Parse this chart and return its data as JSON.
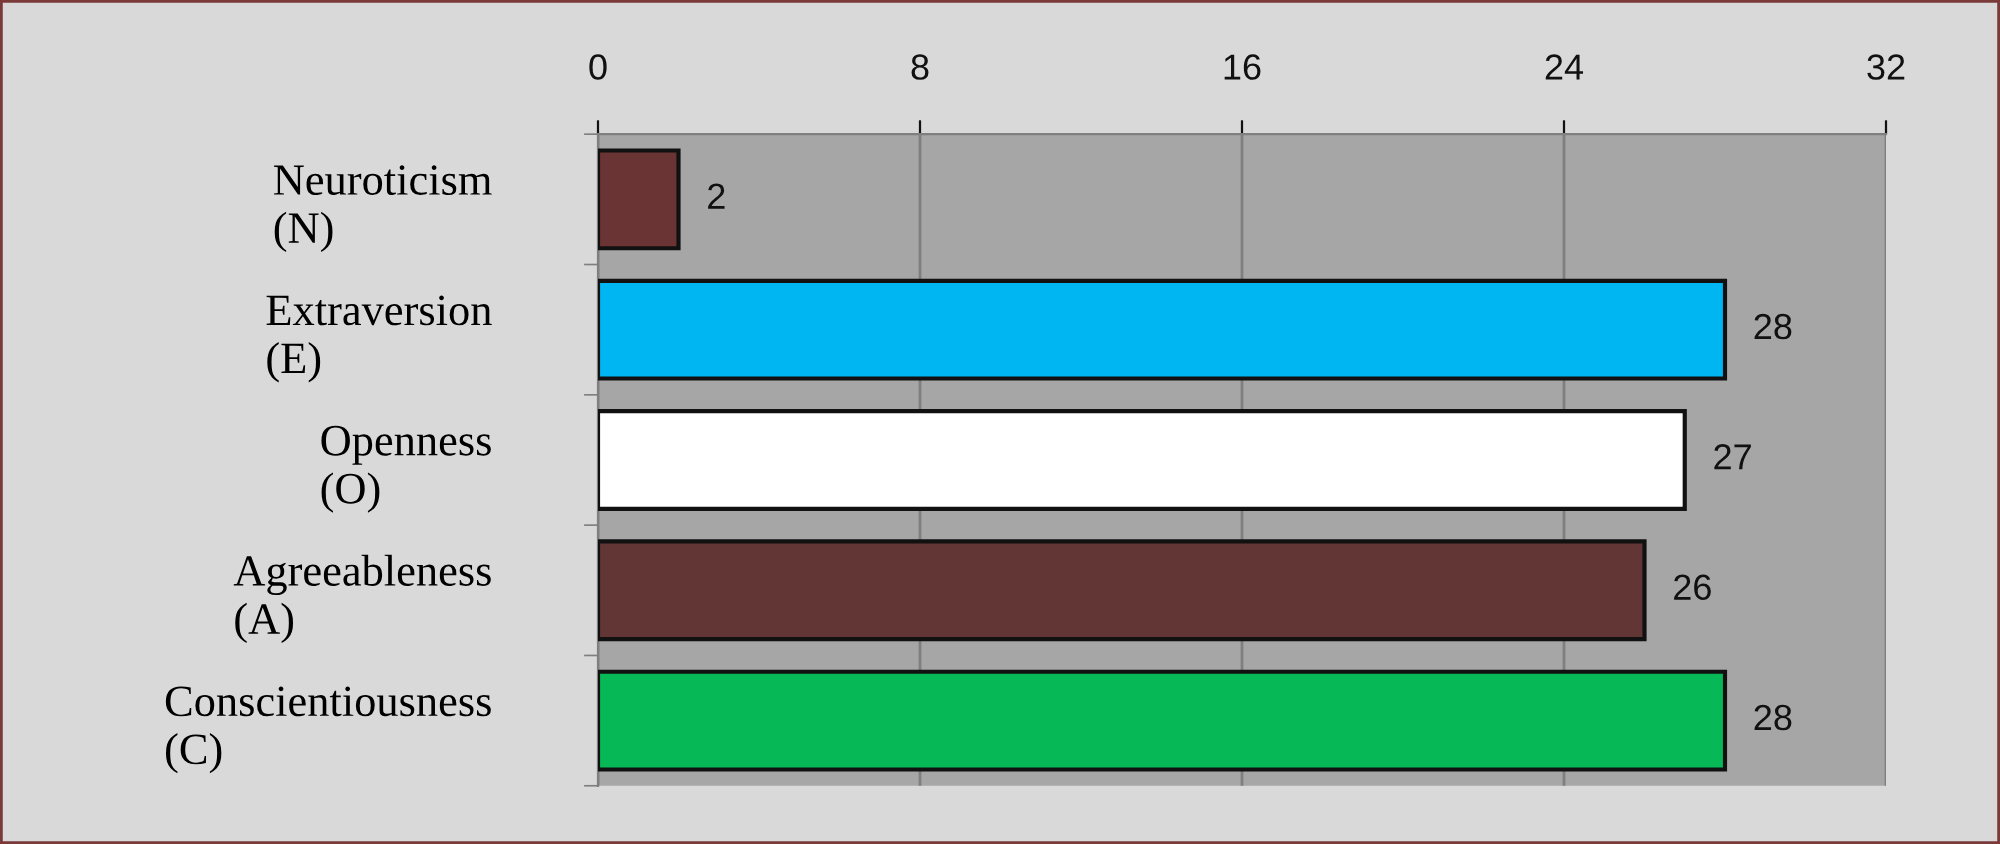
{
  "chart_data": {
    "type": "bar",
    "orientation": "horizontal",
    "categories": [
      "Neuroticism (N)",
      "Extraversion (E)",
      "Openness (O)",
      "Agreeableness (A)",
      "Conscientiousness (C)"
    ],
    "values": [
      2,
      28,
      27,
      26,
      28
    ],
    "colors": [
      "#6b3434",
      "#00b6f2",
      "#ffffff",
      "#613635",
      "#06b956"
    ],
    "xlim": [
      0,
      32
    ],
    "xticks": [
      0,
      8,
      16,
      24,
      32
    ],
    "grid": "x",
    "data_labels": true
  }
}
